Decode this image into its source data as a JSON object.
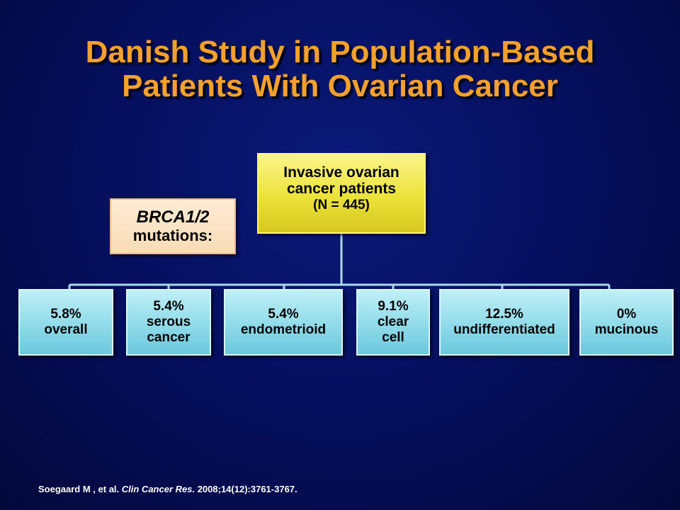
{
  "title": {
    "line1": "Danish Study in Population-Based",
    "line2": "Patients With Ovarian Cancer"
  },
  "root_node": {
    "line1": "Invasive ovarian",
    "line2": "cancer patients",
    "line3": "(N = 445)"
  },
  "label_box": {
    "gene": "BRCA1/2",
    "text": "mutations:"
  },
  "nodes": [
    {
      "value": "5.8%",
      "label": "overall"
    },
    {
      "value": "5.4%",
      "label": "serous",
      "label2": "cancer"
    },
    {
      "value": "5.4%",
      "label": "endometrioid"
    },
    {
      "value": "9.1%",
      "label": "clear",
      "label2": "cell"
    },
    {
      "value": "12.5%",
      "label": "undifferentiated"
    },
    {
      "value": "0%",
      "label": "mucinous"
    }
  ],
  "citation": {
    "authors": "Soegaard M , et al. ",
    "journal": "Clin Cancer Res.",
    "details": " 2008;14(12):3761-3767."
  },
  "colors": {
    "title": "#f3a12a",
    "root_fill": "#ece23a",
    "label_fill": "#fbe3c4",
    "leaf_fill": "#8fdbe9",
    "connector": "#a9d9ec"
  }
}
